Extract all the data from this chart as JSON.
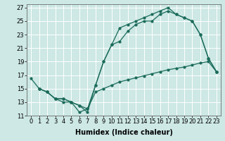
{
  "xlabel": "Humidex (Indice chaleur)",
  "xlim": [
    -0.5,
    23.5
  ],
  "ylim": [
    11,
    27.5
  ],
  "yticks": [
    11,
    13,
    15,
    17,
    19,
    21,
    23,
    25,
    27
  ],
  "xticks": [
    0,
    1,
    2,
    3,
    4,
    5,
    6,
    7,
    8,
    9,
    10,
    11,
    12,
    13,
    14,
    15,
    16,
    17,
    18,
    19,
    20,
    21,
    22,
    23
  ],
  "bg_color": "#cde8e5",
  "grid_color": "#ffffff",
  "line_color": "#1a6b5a",
  "line1_x": [
    0,
    1,
    2,
    3,
    4,
    5,
    6,
    7,
    8,
    9,
    10,
    11,
    12,
    13,
    14,
    15,
    16,
    17,
    18,
    19,
    20,
    21,
    22,
    23
  ],
  "line1_y": [
    16.5,
    15,
    14.5,
    13.5,
    13.5,
    13,
    11.5,
    12.0,
    15.5,
    19,
    21.5,
    24,
    24.5,
    25.0,
    25.5,
    26.0,
    26.5,
    27.0,
    26.0,
    25.5,
    25.0,
    23.0,
    19.5,
    17.5
  ],
  "line2_x": [
    1,
    2,
    3,
    4,
    5,
    6,
    7,
    8,
    9,
    10,
    11,
    12,
    13,
    14,
    15,
    16,
    17,
    18,
    19,
    20,
    21,
    22,
    23
  ],
  "line2_y": [
    15,
    14.5,
    13.5,
    13.5,
    13.0,
    12.5,
    11.5,
    15.5,
    19.0,
    21.5,
    22.0,
    23.5,
    24.5,
    25.0,
    25.0,
    26.0,
    26.5,
    26.0,
    25.5,
    25.0,
    23.0,
    19.5,
    17.5
  ],
  "line3_x": [
    1,
    2,
    3,
    4,
    5,
    6,
    7,
    8,
    9,
    10,
    11,
    12,
    13,
    14,
    15,
    16,
    17,
    18,
    19,
    20,
    21,
    22,
    23
  ],
  "line3_y": [
    15,
    14.5,
    13.5,
    13.0,
    13.0,
    12.5,
    12.0,
    14.5,
    15.0,
    15.5,
    16.0,
    16.3,
    16.6,
    16.9,
    17.2,
    17.5,
    17.8,
    18.0,
    18.2,
    18.5,
    18.8,
    19.0,
    17.5
  ],
  "font_size_label": 7.0,
  "font_size_tick": 6.0,
  "marker_size": 2.0,
  "line_width": 0.9
}
